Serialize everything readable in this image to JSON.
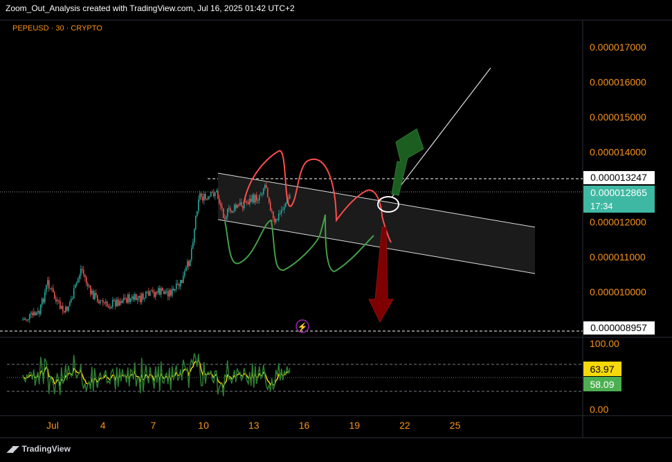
{
  "header": {
    "title": "Zoom_Out_Analysis created with TradingView.com, Jul 16, 2025 01:42 UTC+2"
  },
  "symbol": {
    "label": "PEPEUSD · 30 · CRYPTO"
  },
  "branding": {
    "label": "TradingView"
  },
  "colors": {
    "background": "#000000",
    "axis_text": "#f7931a",
    "candle_up": "#26a69a",
    "candle_down": "#ef5350",
    "rsi_line": "#2e7d32",
    "rsi_ma": "#f5d90a",
    "arrow_up": "#1b5e20",
    "arrow_down": "#7f0000",
    "path_red": "#ff4d4d",
    "path_green": "#43a047",
    "last_price_bg": "#3fb8a3"
  },
  "chart_data": {
    "type": "candlestick",
    "title": "PEPEUSD · 30 · CRYPTO",
    "y_axis": {
      "scale": "linear",
      "range": [
        8.5e-06,
        1.76e-05
      ],
      "ticks": [
        "0.000017000",
        "0.000016000",
        "0.000015000",
        "0.000014000",
        "0.000012000",
        "0.000011000",
        "0.000010000"
      ]
    },
    "x_axis": {
      "ticks": [
        "Jul",
        "4",
        "7",
        "10",
        "13",
        "16",
        "19",
        "22",
        "25"
      ],
      "range": [
        "Jun 30",
        "Jul 26"
      ]
    },
    "price_labels": [
      {
        "label": "0.000013247",
        "value": 1.3247e-05,
        "style": "white-level"
      },
      {
        "label": "0.000012865",
        "value": 1.2865e-05,
        "countdown": "17:34",
        "style": "last-price"
      },
      {
        "label": "0.000008957",
        "value": 8.957e-06,
        "style": "white-level"
      }
    ],
    "series": [
      {
        "name": "PEPEUSD",
        "points": [
          {
            "date": "Jun 30",
            "price": 9.2e-06
          },
          {
            "date": "Jul 1",
            "price": 9.4e-06
          },
          {
            "date": "Jul 1 12:00",
            "price": 1.03e-05
          },
          {
            "date": "Jul 2",
            "price": 9.7e-06
          },
          {
            "date": "Jul 2 12:00",
            "price": 9.4e-06
          },
          {
            "date": "Jul 3",
            "price": 9.9e-06
          },
          {
            "date": "Jul 3 12:00",
            "price": 1.07e-05
          },
          {
            "date": "Jul 4",
            "price": 1e-05
          },
          {
            "date": "Jul 5",
            "price": 9.6e-06
          },
          {
            "date": "Jul 6",
            "price": 9.8e-06
          },
          {
            "date": "Jul 7",
            "price": 9.8e-06
          },
          {
            "date": "Jul 8",
            "price": 1e-05
          },
          {
            "date": "Jul 9",
            "price": 1e-05
          },
          {
            "date": "Jul 9 12:00",
            "price": 1.03e-05
          },
          {
            "date": "Jul 10",
            "price": 1.1e-05
          },
          {
            "date": "Jul 10 12:00",
            "price": 1.28e-05
          },
          {
            "date": "Jul 11",
            "price": 1.26e-05
          },
          {
            "date": "Jul 11 12:00",
            "price": 1.29e-05
          },
          {
            "date": "Jul 12",
            "price": 1.22e-05
          },
          {
            "date": "Jul 13",
            "price": 1.25e-05
          },
          {
            "date": "Jul 14",
            "price": 1.27e-05
          },
          {
            "date": "Jul 14 12:00",
            "price": 1.31e-05
          },
          {
            "date": "Jul 15",
            "price": 1.19e-05
          },
          {
            "date": "Jul 15 12:00",
            "price": 1.24e-05
          },
          {
            "date": "Jul 16",
            "price": 1.28e-05
          }
        ]
      }
    ],
    "channel": {
      "upper": [
        {
          "date": "Jul 11",
          "price": 1.34e-05
        },
        {
          "date": "Jul 26",
          "price": 1.18e-05
        }
      ],
      "lower": [
        {
          "date": "Jul 11",
          "price": 1.21e-05
        },
        {
          "date": "Jul 26",
          "price": 1.05e-05
        }
      ]
    },
    "rsi": {
      "range": [
        0,
        100
      ],
      "ticks": [
        "100.00",
        "0.00"
      ],
      "levels": [
        70,
        50,
        30
      ],
      "values_shown": [
        {
          "label": "63.97",
          "value": 63.97
        },
        {
          "label": "58.09",
          "value": 58.09
        }
      ]
    }
  }
}
